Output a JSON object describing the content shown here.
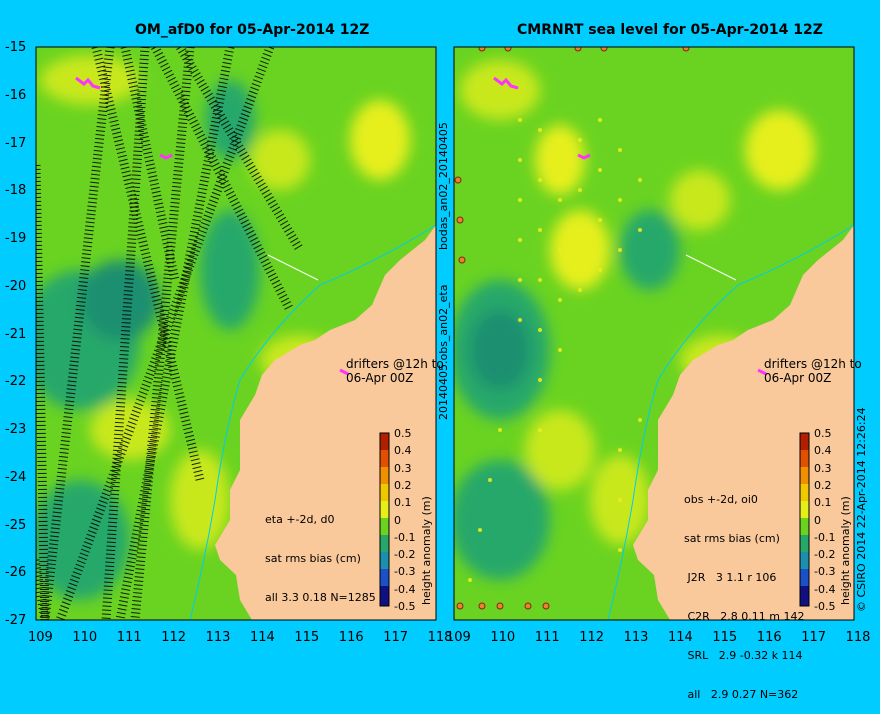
{
  "left_panel": {
    "title": "OM_afD0 for 05-Apr-2014 12Z",
    "info_lines": [
      "eta +-2d, d0",
      "sat rms bias (cm)",
      "all 3.3 0.18 N=1285"
    ]
  },
  "right_panel": {
    "title": "CMRNRT sea level  for 05-Apr-2014 12Z",
    "info_lines": [
      "obs +-2d, oi0",
      "sat rms bias (cm)",
      " J2R   3 1.1 r 106",
      " C2R   2.8 0.11 m 142",
      " SRL   2.9 -0.32 k 114",
      " all   2.9 0.27 N=362"
    ]
  },
  "drifter_label": [
    "drifters @12h to",
    "06-Apr 00Z"
  ],
  "left_vertical_text": "20140405.obs_an02_eta",
  "left_vertical_text2": "bodas_an02_20140405",
  "colorbar_label": "height anomaly (m)",
  "colorbar_ticks": [
    "0.5",
    "0.4",
    "0.3",
    "0.2",
    "0.1",
    "0",
    "-0.1",
    "-0.2",
    "-0.3",
    "-0.4",
    "-0.5"
  ],
  "credit": "© CSIRO 2014   22-Apr-2014 12:26:24",
  "axes": {
    "lat_ticks": [
      "-15",
      "-16",
      "-17",
      "-18",
      "-19",
      "-20",
      "-21",
      "-22",
      "-23",
      "-24",
      "-25",
      "-26",
      "-27"
    ],
    "lon_ticks": [
      "109",
      "110",
      "111",
      "112",
      "113",
      "114",
      "115",
      "116",
      "117",
      "118"
    ]
  },
  "colors": {
    "background": "#00ccff",
    "land": "#f9c89b",
    "ocean_base": "#6ad321",
    "high": "#e6ef1a",
    "low": "#25a86a",
    "track": "#000000",
    "drifter": "#ff33ff"
  }
}
